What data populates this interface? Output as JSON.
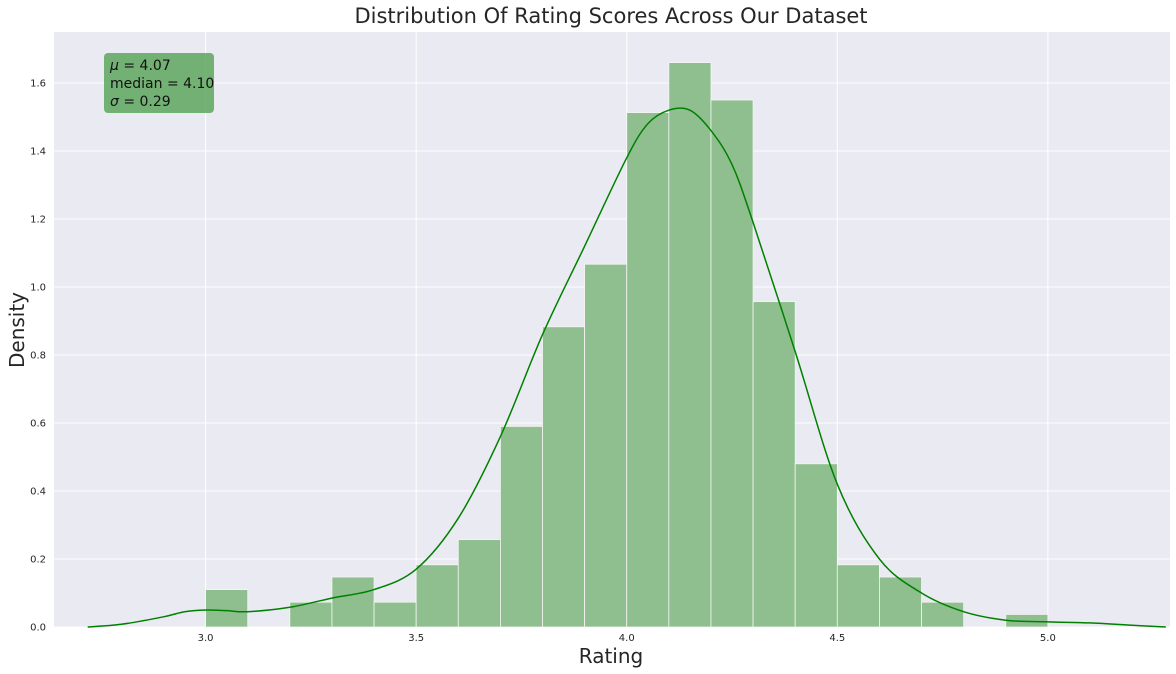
{
  "chart_data": {
    "type": "bar",
    "title": "Distribution Of Rating Scores Across Our Dataset",
    "xlabel": "Rating",
    "ylabel": "Density",
    "xlim": [
      2.64,
      5.29
    ],
    "ylim": [
      0.0,
      1.75
    ],
    "xticks": [
      "3.0",
      "3.5",
      "4.0",
      "4.5",
      "5.0"
    ],
    "xtick_values": [
      3.0,
      3.5,
      4.0,
      4.5,
      5.0
    ],
    "yticks": [
      "0.0",
      "0.2",
      "0.4",
      "0.6",
      "0.8",
      "1.0",
      "1.2",
      "1.4",
      "1.6"
    ],
    "ytick_values": [
      0.0,
      0.2,
      0.4,
      0.6,
      0.8,
      1.0,
      1.2,
      1.4,
      1.6
    ],
    "grid": true,
    "bar_color": "#8fbf8f",
    "kde_color": "#008000",
    "background_color": "#eaeaf2",
    "series": [
      {
        "kind": "histogram",
        "bins": [
          {
            "x0": 3.0,
            "x1": 3.1,
            "value": 0.11
          },
          {
            "x0": 3.2,
            "x1": 3.3,
            "value": 0.073
          },
          {
            "x0": 3.3,
            "x1": 3.4,
            "value": 0.147
          },
          {
            "x0": 3.4,
            "x1": 3.5,
            "value": 0.073
          },
          {
            "x0": 3.5,
            "x1": 3.6,
            "value": 0.183
          },
          {
            "x0": 3.6,
            "x1": 3.7,
            "value": 0.257
          },
          {
            "x0": 3.7,
            "x1": 3.8,
            "value": 0.59
          },
          {
            "x0": 3.8,
            "x1": 3.9,
            "value": 0.883
          },
          {
            "x0": 3.9,
            "x1": 4.0,
            "value": 1.067
          },
          {
            "x0": 4.0,
            "x1": 4.1,
            "value": 1.513
          },
          {
            "x0": 4.1,
            "x1": 4.2,
            "value": 1.66
          },
          {
            "x0": 4.2,
            "x1": 4.3,
            "value": 1.55
          },
          {
            "x0": 4.3,
            "x1": 4.4,
            "value": 0.957
          },
          {
            "x0": 4.4,
            "x1": 4.5,
            "value": 0.48
          },
          {
            "x0": 4.5,
            "x1": 4.6,
            "value": 0.183
          },
          {
            "x0": 4.6,
            "x1": 4.7,
            "value": 0.147
          },
          {
            "x0": 4.7,
            "x1": 4.8,
            "value": 0.073
          },
          {
            "x0": 4.9,
            "x1": 5.0,
            "value": 0.037
          }
        ]
      },
      {
        "kind": "kde",
        "x": [
          2.72,
          2.8,
          2.9,
          2.95,
          3.0,
          3.05,
          3.1,
          3.2,
          3.3,
          3.4,
          3.5,
          3.6,
          3.7,
          3.8,
          3.9,
          4.0,
          4.05,
          4.1,
          4.15,
          4.2,
          4.25,
          4.3,
          4.4,
          4.5,
          4.6,
          4.7,
          4.8,
          4.9,
          5.0,
          5.1,
          5.2,
          5.28
        ],
        "y": [
          0.0,
          0.008,
          0.03,
          0.045,
          0.05,
          0.048,
          0.045,
          0.058,
          0.085,
          0.11,
          0.17,
          0.32,
          0.56,
          0.86,
          1.12,
          1.38,
          1.48,
          1.52,
          1.52,
          1.46,
          1.36,
          1.19,
          0.81,
          0.42,
          0.2,
          0.1,
          0.045,
          0.02,
          0.015,
          0.012,
          0.005,
          0.0
        ]
      }
    ],
    "stats": [
      {
        "symbol": "μ",
        "label": "= 4.07"
      },
      {
        "symbol": "median",
        "label": "= 4.10"
      },
      {
        "symbol": "σ",
        "label": "= 0.29"
      }
    ],
    "stats_box_color": "#50a050"
  }
}
